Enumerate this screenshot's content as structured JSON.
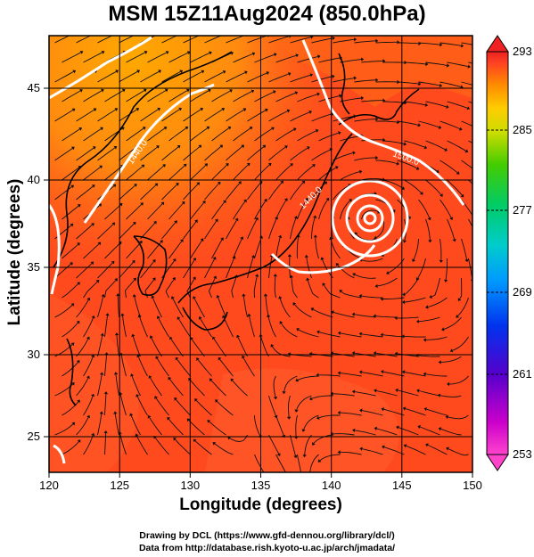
{
  "title": "MSM 15Z11Aug2024 (850.0hPa)",
  "xlabel": "Longitude (degrees)",
  "ylabel": "Latitude  (degrees)",
  "credits": {
    "line1": "Drawing by DCL (https://www.gfd-dennou.org/library/dcl/)",
    "line2": "Data from http://database.rish.kyoto-u.ac.jp/arch/jmadata/"
  },
  "map": {
    "lon_range": [
      120,
      150
    ],
    "lat_range": [
      22.5,
      47.5
    ],
    "lon_ticks": [
      "120",
      "125",
      "130",
      "135",
      "140",
      "145",
      "150"
    ],
    "lat_ticks": [
      "25",
      "30",
      "35",
      "40",
      "45"
    ],
    "contour_labels": [
      "1440.0",
      "1440.0",
      "1500.0"
    ],
    "typhoon_center": {
      "lon": 143.3,
      "lat": 38.0
    }
  },
  "colorbar": {
    "labels": [
      "293",
      "285",
      "277",
      "269",
      "261",
      "253"
    ],
    "min": 253,
    "max": 293,
    "colors": [
      "#ff55cc",
      "#cc00cc",
      "#4400cc",
      "#0033ee",
      "#0099ff",
      "#00cccc",
      "#00cc66",
      "#33cc00",
      "#99dd00",
      "#ffdd00",
      "#ffaa00",
      "#ff6600",
      "#ff3311",
      "#ee2222"
    ]
  },
  "colors": {
    "field_main": "#ff4a1e",
    "field_warm": "#ff7a18",
    "field_hot": "#ffb000",
    "streamline": "#111111",
    "contour": "#ffffff"
  }
}
